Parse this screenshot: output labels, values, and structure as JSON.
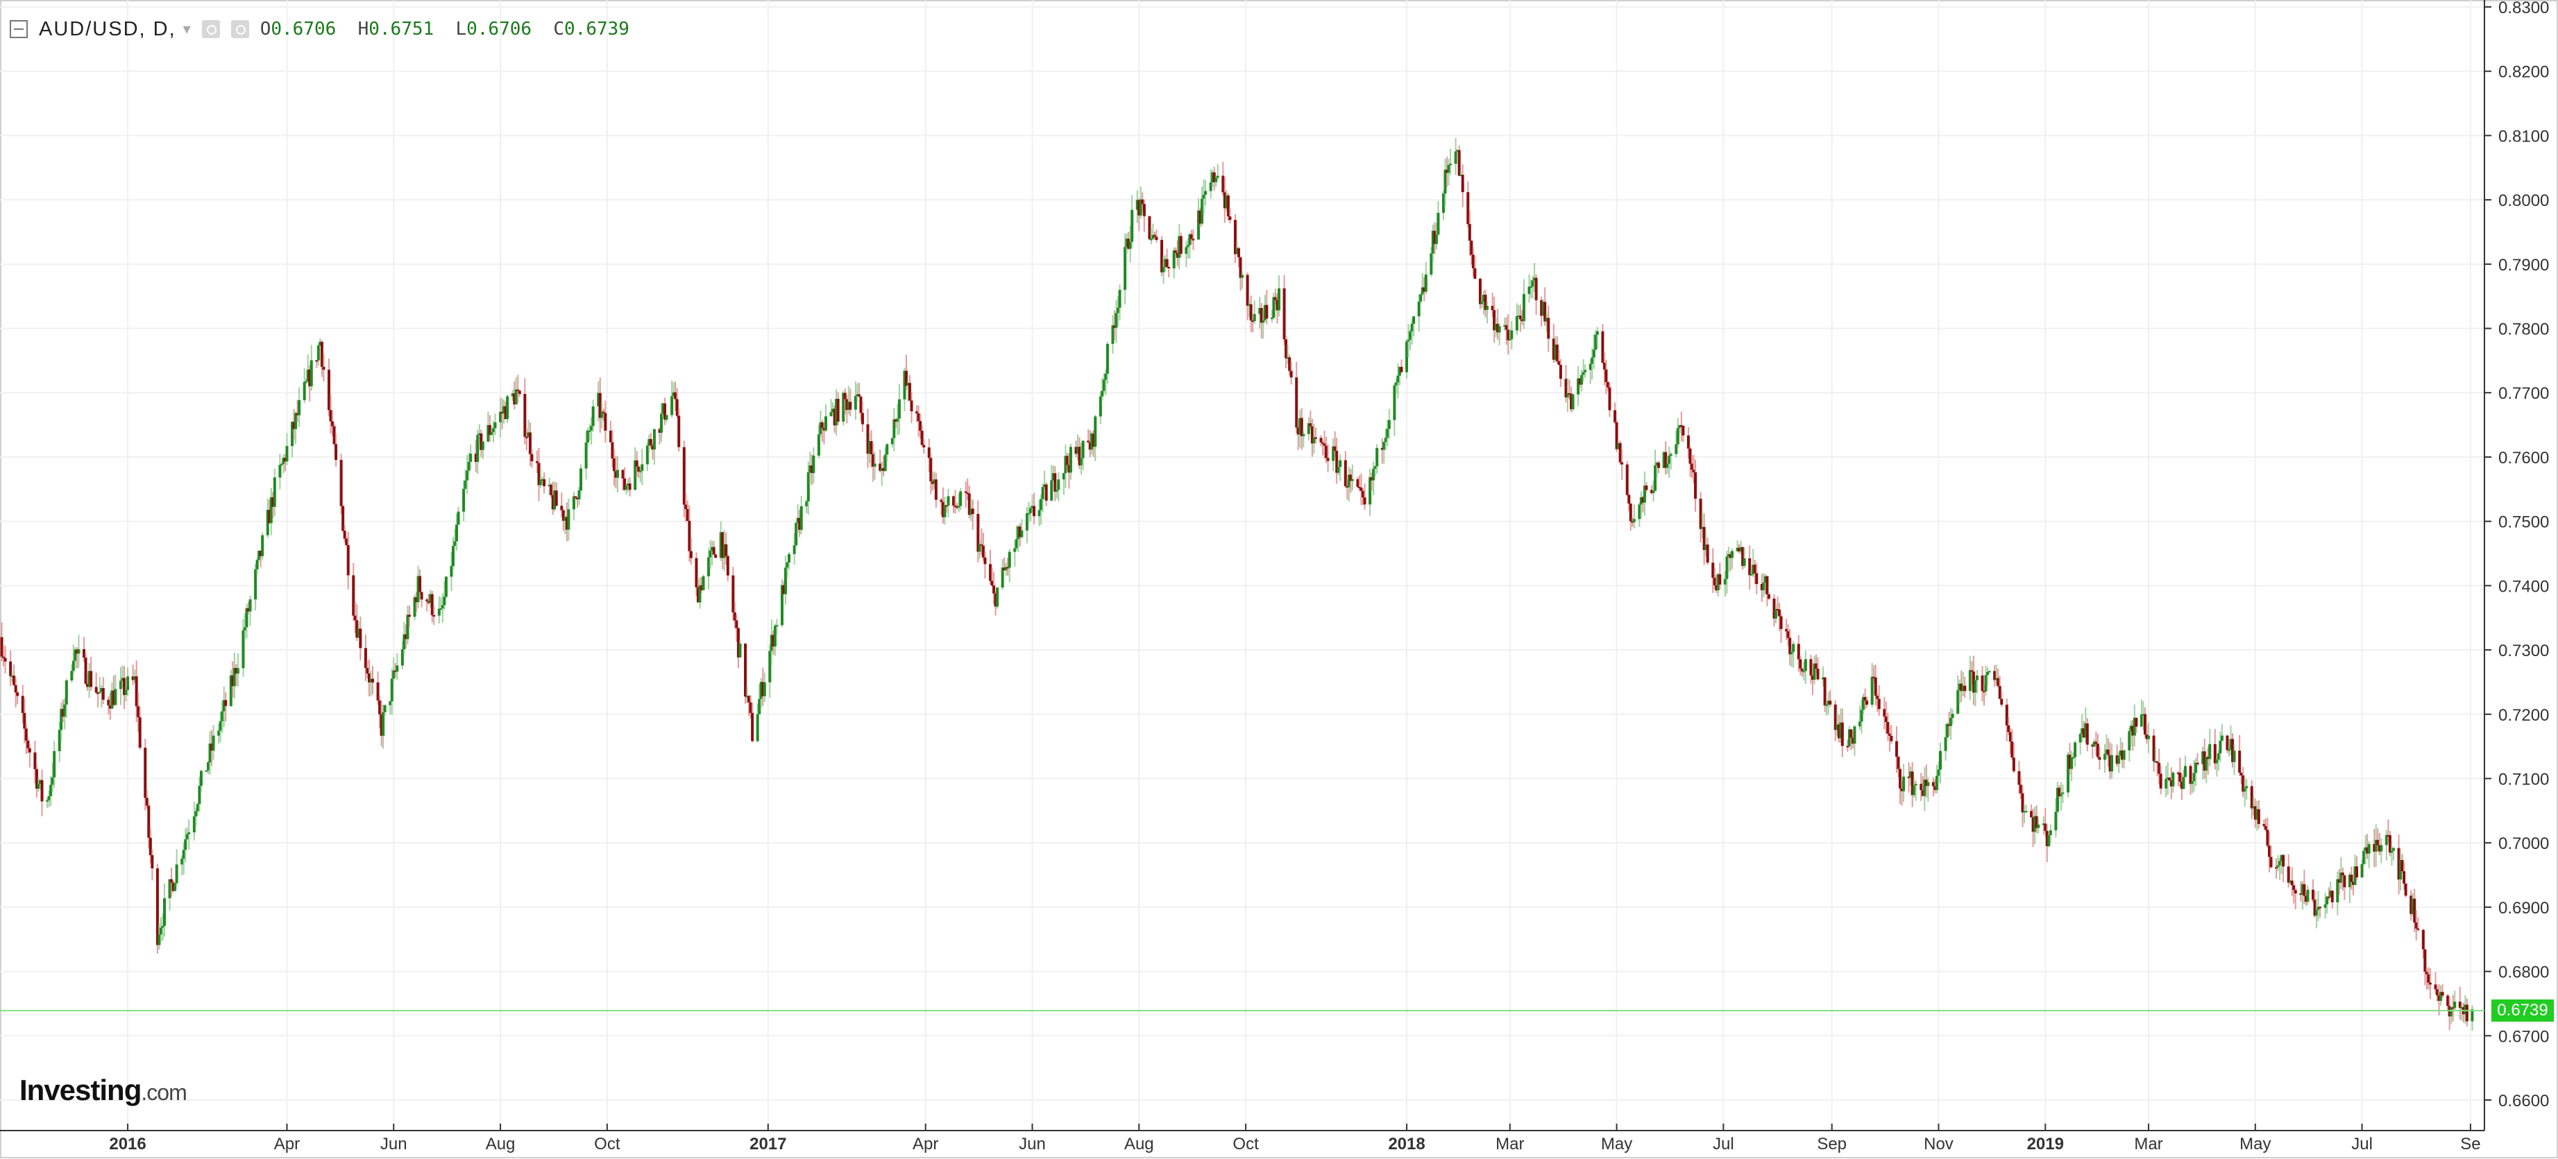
{
  "legend": {
    "symbol": "AUD/USD, D,",
    "open_label": "O",
    "open": "0.6706",
    "high_label": "H",
    "high": "0.6751",
    "low_label": "L",
    "low": "0.6706",
    "close_label": "C",
    "close": "0.6739"
  },
  "branding": {
    "logo": "Investing",
    "logo_domain": ".com"
  },
  "last_price_badge": "0.6739",
  "colors": {
    "up": "#1f8a22",
    "down": "#8b0e0e",
    "wick_up": "#9fd1a1",
    "wick_down": "#e39a9a",
    "grid": "#f0f0f0",
    "axis": "#333333",
    "last_price_line": "#7fe07f",
    "badge": "#22cc22"
  },
  "chart_data": {
    "type": "candlestick",
    "symbol": "AUD/USD",
    "timeframe": "D",
    "ylim": [
      0.66,
      0.83
    ],
    "y_ticks": [
      "0.8300",
      "0.8200",
      "0.8100",
      "0.8000",
      "0.7900",
      "0.7800",
      "0.7700",
      "0.7600",
      "0.7500",
      "0.7400",
      "0.7300",
      "0.7200",
      "0.7100",
      "0.7000",
      "0.6900",
      "0.6800",
      "0.6700",
      "0.6600"
    ],
    "x_ticks": [
      {
        "label": "2016",
        "date": "2016-01-01",
        "bold": true
      },
      {
        "label": "Apr",
        "date": "2016-04-01"
      },
      {
        "label": "Jun",
        "date": "2016-06-01"
      },
      {
        "label": "Aug",
        "date": "2016-08-01"
      },
      {
        "label": "Oct",
        "date": "2016-10-01"
      },
      {
        "label": "2017",
        "date": "2017-01-01",
        "bold": true
      },
      {
        "label": "Apr",
        "date": "2017-04-01"
      },
      {
        "label": "Jun",
        "date": "2017-06-01"
      },
      {
        "label": "Aug",
        "date": "2017-08-01"
      },
      {
        "label": "Oct",
        "date": "2017-10-01"
      },
      {
        "label": "2018",
        "date": "2018-01-01",
        "bold": true
      },
      {
        "label": "Mar",
        "date": "2018-03-01"
      },
      {
        "label": "May",
        "date": "2018-05-01"
      },
      {
        "label": "Jul",
        "date": "2018-07-01"
      },
      {
        "label": "Sep",
        "date": "2018-09-01"
      },
      {
        "label": "Nov",
        "date": "2018-11-01"
      },
      {
        "label": "2019",
        "date": "2019-01-01",
        "bold": true
      },
      {
        "label": "Mar",
        "date": "2019-03-01"
      },
      {
        "label": "May",
        "date": "2019-05-01"
      },
      {
        "label": "Jul",
        "date": "2019-07-01"
      },
      {
        "label": "Se",
        "date": "2019-09-01"
      }
    ],
    "x_range": [
      "2015-10-20",
      "2019-09-05"
    ],
    "last_price": 0.6739,
    "close_path": [
      [
        "2015-10-20",
        0.732
      ],
      [
        "2015-11-15",
        0.705
      ],
      [
        "2015-12-01",
        0.73
      ],
      [
        "2015-12-18",
        0.722
      ],
      [
        "2016-01-05",
        0.725
      ],
      [
        "2016-01-18",
        0.686
      ],
      [
        "2016-02-15",
        0.712
      ],
      [
        "2016-03-01",
        0.725
      ],
      [
        "2016-03-25",
        0.755
      ],
      [
        "2016-04-20",
        0.778
      ],
      [
        "2016-05-10",
        0.735
      ],
      [
        "2016-05-25",
        0.718
      ],
      [
        "2016-06-15",
        0.74
      ],
      [
        "2016-06-28",
        0.735
      ],
      [
        "2016-07-15",
        0.76
      ],
      [
        "2016-08-10",
        0.77
      ],
      [
        "2016-08-25",
        0.755
      ],
      [
        "2016-09-10",
        0.75
      ],
      [
        "2016-09-25",
        0.769
      ],
      [
        "2016-10-10",
        0.755
      ],
      [
        "2016-10-25",
        0.762
      ],
      [
        "2016-11-08",
        0.77
      ],
      [
        "2016-11-20",
        0.738
      ],
      [
        "2016-12-05",
        0.748
      ],
      [
        "2016-12-23",
        0.717
      ],
      [
        "2017-01-10",
        0.74
      ],
      [
        "2017-02-01",
        0.765
      ],
      [
        "2017-02-20",
        0.77
      ],
      [
        "2017-03-05",
        0.756
      ],
      [
        "2017-03-20",
        0.772
      ],
      [
        "2017-04-10",
        0.752
      ],
      [
        "2017-04-25",
        0.753
      ],
      [
        "2017-05-10",
        0.738
      ],
      [
        "2017-05-25",
        0.748
      ],
      [
        "2017-06-20",
        0.759
      ],
      [
        "2017-07-05",
        0.762
      ],
      [
        "2017-07-30",
        0.8
      ],
      [
        "2017-08-15",
        0.79
      ],
      [
        "2017-09-01",
        0.795
      ],
      [
        "2017-09-15",
        0.805
      ],
      [
        "2017-10-05",
        0.78
      ],
      [
        "2017-10-20",
        0.785
      ],
      [
        "2017-10-30",
        0.765
      ],
      [
        "2017-11-20",
        0.76
      ],
      [
        "2017-12-08",
        0.752
      ],
      [
        "2017-12-20",
        0.765
      ],
      [
        "2018-01-10",
        0.785
      ],
      [
        "2018-01-28",
        0.81
      ],
      [
        "2018-02-10",
        0.786
      ],
      [
        "2018-02-28",
        0.778
      ],
      [
        "2018-03-15",
        0.787
      ],
      [
        "2018-04-05",
        0.768
      ],
      [
        "2018-04-20",
        0.778
      ],
      [
        "2018-05-10",
        0.75
      ],
      [
        "2018-05-25",
        0.758
      ],
      [
        "2018-06-08",
        0.765
      ],
      [
        "2018-06-25",
        0.74
      ],
      [
        "2018-07-10",
        0.745
      ],
      [
        "2018-07-25",
        0.74
      ],
      [
        "2018-08-10",
        0.73
      ],
      [
        "2018-08-25",
        0.725
      ],
      [
        "2018-09-10",
        0.715
      ],
      [
        "2018-09-25",
        0.725
      ],
      [
        "2018-10-10",
        0.71
      ],
      [
        "2018-10-28",
        0.708
      ],
      [
        "2018-11-15",
        0.725
      ],
      [
        "2018-12-05",
        0.725
      ],
      [
        "2018-12-20",
        0.705
      ],
      [
        "2019-01-02",
        0.701
      ],
      [
        "2019-01-20",
        0.718
      ],
      [
        "2019-02-10",
        0.712
      ],
      [
        "2019-02-25",
        0.72
      ],
      [
        "2019-03-10",
        0.708
      ],
      [
        "2019-03-25",
        0.711
      ],
      [
        "2019-04-15",
        0.716
      ],
      [
        "2019-05-10",
        0.698
      ],
      [
        "2019-06-05",
        0.69
      ],
      [
        "2019-06-25",
        0.695
      ],
      [
        "2019-07-15",
        0.702
      ],
      [
        "2019-08-01",
        0.688
      ],
      [
        "2019-08-10",
        0.676
      ],
      [
        "2019-08-28",
        0.674
      ],
      [
        "2019-09-02",
        0.6739
      ]
    ]
  }
}
